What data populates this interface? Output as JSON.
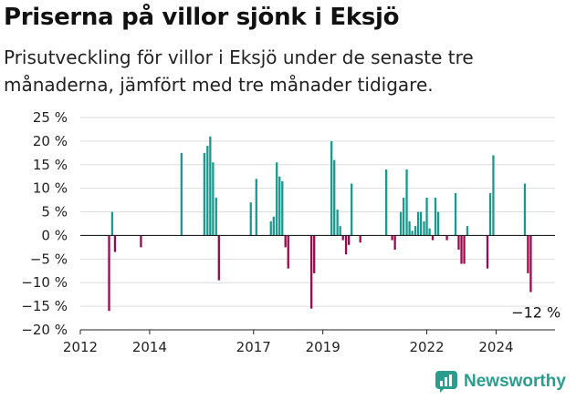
{
  "header": {
    "title": "Priserna på villor sjönk i Eksjö",
    "subtitle": "Prisutveckling för villor i Eksjö under de senaste tre månaderna, jämfört med tre månader tidigare."
  },
  "brand": {
    "name": "Newsworthy",
    "icon": "newsworthy-logo-icon",
    "color": "#2a9d8f"
  },
  "chart_data": {
    "type": "bar",
    "title": "",
    "xlabel": "",
    "ylabel": "",
    "ylim": [
      -20,
      25
    ],
    "xlim": [
      2012.0,
      2025.7
    ],
    "grid": true,
    "yticks": [
      25,
      20,
      15,
      10,
      5,
      0,
      -5,
      -10,
      -15,
      -20
    ],
    "ytick_labels": [
      "25 %",
      "20 %",
      "15 %",
      "10 %",
      "5 %",
      "0 %",
      "−5 %",
      "−10 %",
      "−15 %",
      "−20 %"
    ],
    "xticks": [
      2012,
      2014,
      2017,
      2019,
      2022,
      2024
    ],
    "xtick_labels": [
      "2012",
      "2014",
      "2017",
      "2019",
      "2022",
      "2024"
    ],
    "positive_color": "#1a9a8f",
    "negative_color": "#9b0a4c",
    "annotation": {
      "text": "−12 %",
      "x": 2025.1,
      "y": -12
    },
    "x": [
      2012.83,
      2012.92,
      2013.0,
      2013.75,
      2014.92,
      2015.58,
      2015.67,
      2015.75,
      2015.83,
      2015.92,
      2016.0,
      2016.92,
      2017.08,
      2017.5,
      2017.58,
      2017.67,
      2017.75,
      2017.83,
      2017.92,
      2018.0,
      2018.67,
      2018.75,
      2019.25,
      2019.33,
      2019.42,
      2019.5,
      2019.58,
      2019.67,
      2019.75,
      2019.83,
      2020.08,
      2020.83,
      2021.0,
      2021.08,
      2021.25,
      2021.33,
      2021.42,
      2021.5,
      2021.58,
      2021.67,
      2021.75,
      2021.83,
      2021.92,
      2022.0,
      2022.08,
      2022.17,
      2022.25,
      2022.33,
      2022.58,
      2022.83,
      2022.92,
      2023.0,
      2023.08,
      2023.17,
      2023.75,
      2023.83,
      2023.92,
      2024.83,
      2024.92,
      2025.0
    ],
    "values": [
      -16,
      5,
      -3.5,
      -2.5,
      17.5,
      17.5,
      19,
      21,
      15.5,
      8,
      -9.5,
      7,
      12,
      3,
      4,
      15.5,
      12.5,
      11.5,
      -2.5,
      -7,
      -15.5,
      -8,
      20,
      16,
      5.5,
      2,
      -1,
      -4,
      -2,
      11,
      -1.5,
      14,
      -1,
      -3,
      5,
      8,
      14,
      3,
      1,
      2,
      5,
      5,
      3,
      8,
      1.5,
      -1,
      8,
      5,
      -1,
      9,
      -3,
      -6,
      -6,
      2,
      -7,
      9,
      17,
      11,
      -8,
      -12
    ]
  }
}
